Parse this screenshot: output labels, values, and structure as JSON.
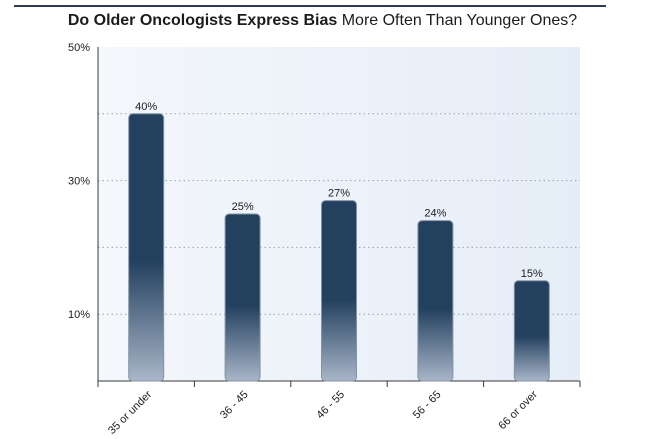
{
  "title": {
    "bold": "Do Older Oncologists Express Bias",
    "rest": " More Often Than Younger Ones?"
  },
  "colors": {
    "bar_top": "#24405f",
    "bar_bottom": "#a8b6c8",
    "plot_bg_left": "#f4f7fc",
    "plot_bg_right": "#e5edf8",
    "grid": "#9aa3ad",
    "axis": "#3a3a3a"
  },
  "chart_data": {
    "type": "bar",
    "categories": [
      "35 or under",
      "36 - 45",
      "46 - 55",
      "56 - 65",
      "66 or over"
    ],
    "values": [
      40,
      25,
      27,
      24,
      15
    ],
    "data_labels": [
      "40%",
      "25%",
      "27%",
      "24%",
      "15%"
    ],
    "ylim": [
      0,
      50
    ],
    "y_ticks": [
      10,
      30,
      50
    ],
    "y_tick_labels": [
      "10%",
      "30%",
      "50%"
    ],
    "grid_values": [
      10,
      20,
      30,
      40
    ],
    "grid": true,
    "xlabel": "",
    "ylabel": ""
  }
}
